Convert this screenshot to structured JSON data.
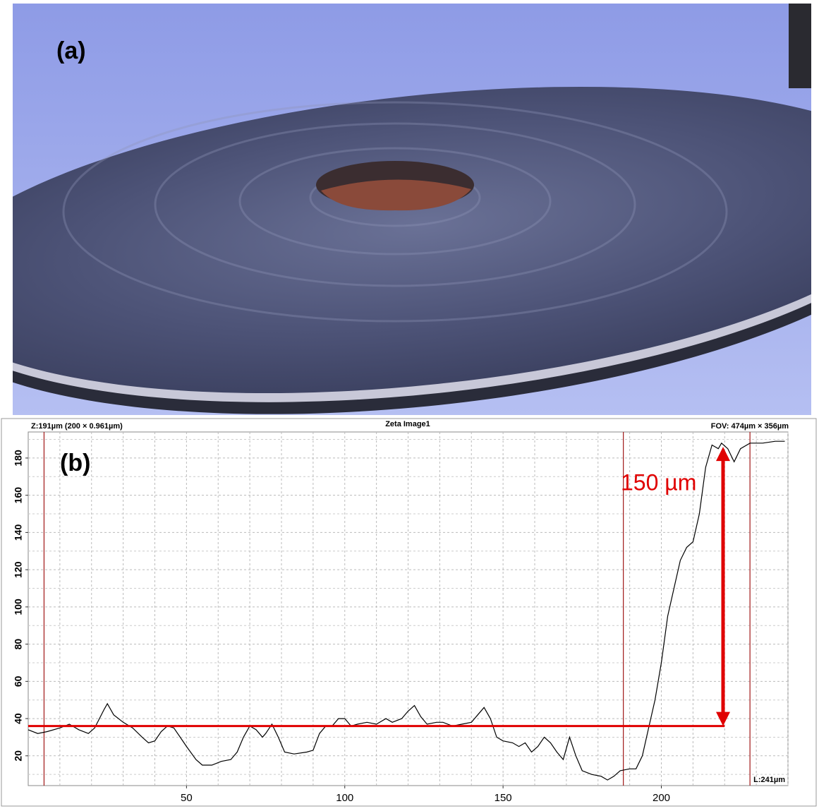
{
  "panel_a": {
    "label": "(a)"
  },
  "chart_data": {
    "type": "line",
    "label": "(b)",
    "title": "Zeta Image1",
    "header_left": "Z:191µm (200 × 0.961µm)",
    "header_right": "FOV: 474µm × 356µm",
    "length_label": "L:241µm",
    "x": [
      0,
      3,
      6,
      10,
      13,
      16,
      19,
      21,
      24,
      25,
      27,
      30,
      33,
      36,
      38,
      40,
      42,
      44,
      46,
      48,
      50,
      53,
      55,
      58,
      61,
      64,
      66,
      68,
      70,
      72,
      74,
      75,
      77,
      79,
      81,
      84,
      88,
      90,
      92,
      94,
      96,
      98,
      100,
      102,
      104,
      107,
      110,
      113,
      115,
      118,
      120,
      122,
      124,
      126,
      129,
      131,
      134,
      137,
      140,
      142,
      144,
      146,
      148,
      150,
      153,
      155,
      157,
      159,
      161,
      163,
      165,
      167,
      169,
      171,
      173,
      175,
      178,
      181,
      183,
      185,
      187,
      190,
      192,
      194,
      196,
      198,
      200,
      202,
      204,
      206,
      208,
      210,
      212,
      214,
      216,
      218,
      219,
      221,
      223,
      225,
      228,
      232,
      236,
      239
    ],
    "values": [
      34,
      32,
      33,
      35,
      37,
      34,
      32,
      35,
      45,
      48,
      42,
      38,
      35,
      30,
      27,
      28,
      33,
      36,
      35,
      30,
      25,
      18,
      15,
      15,
      17,
      18,
      22,
      30,
      36,
      34,
      30,
      32,
      37,
      30,
      22,
      21,
      22,
      23,
      32,
      36,
      36,
      40,
      40,
      36,
      37,
      38,
      37,
      40,
      38,
      40,
      44,
      47,
      41,
      37,
      38,
      38,
      36,
      37,
      38,
      42,
      46,
      40,
      30,
      28,
      27,
      25,
      27,
      22,
      25,
      30,
      27,
      22,
      18,
      30,
      20,
      12,
      10,
      9,
      7,
      9,
      12,
      13,
      13,
      20,
      35,
      50,
      70,
      95,
      110,
      125,
      132,
      135,
      150,
      175,
      187,
      185,
      188,
      185,
      178,
      185,
      188,
      188,
      189,
      189
    ],
    "color": "#000000",
    "xlim": [
      0,
      240
    ],
    "ylim": [
      4,
      194
    ],
    "xticks": [
      50,
      100,
      150,
      200
    ],
    "yticks": [
      20,
      40,
      60,
      80,
      100,
      120,
      140,
      160,
      180
    ],
    "grid": true,
    "cursors": [
      5,
      188,
      228
    ],
    "cursor_color": "#a01818",
    "baseline": {
      "y": 36,
      "x_end": 220,
      "color": "#e00000"
    },
    "arrow": {
      "x": 219.5,
      "from": 36,
      "to": 186,
      "label": "150 µm",
      "color": "#e00000"
    }
  }
}
